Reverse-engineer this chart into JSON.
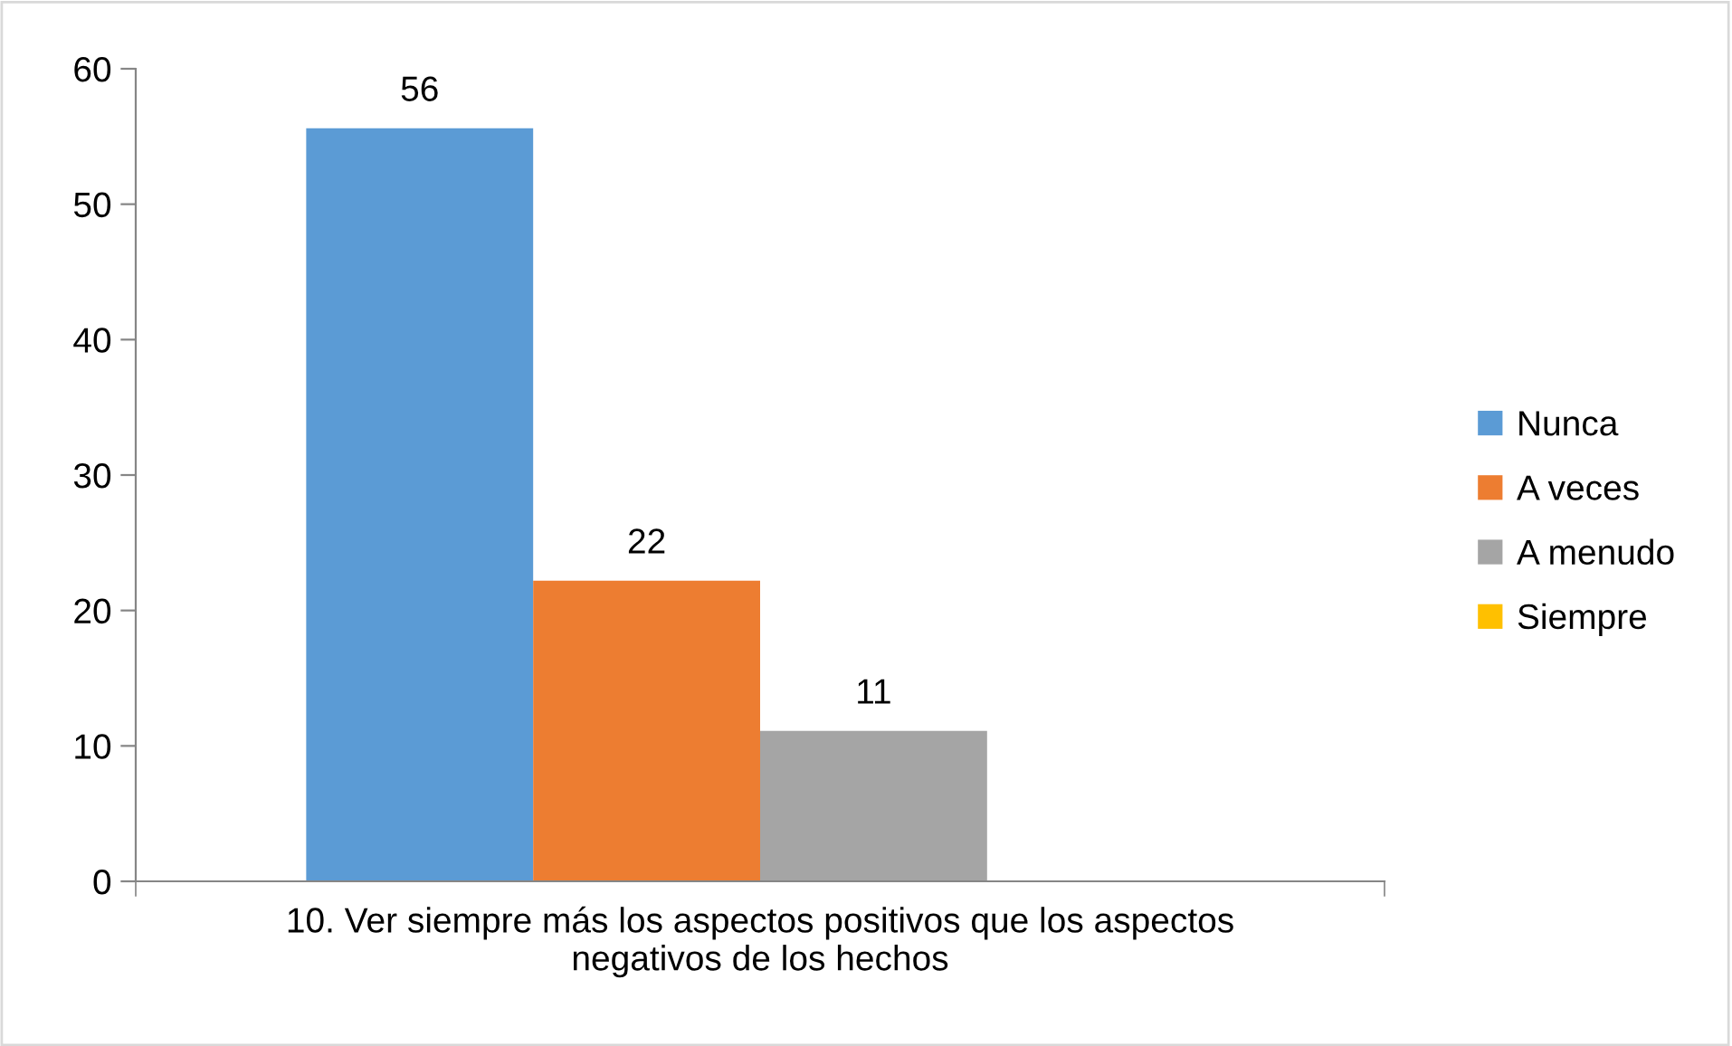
{
  "chart_data": {
    "type": "bar",
    "categories": [
      "10. Ver siempre más los aspectos positivos que los aspectos\nnegativos de los hechos"
    ],
    "series": [
      {
        "name": "Nunca",
        "color": "#5b9bd5",
        "values": [
          55.6
        ],
        "value_labels": [
          "56"
        ]
      },
      {
        "name": "A veces",
        "color": "#ed7d31",
        "values": [
          22.2
        ],
        "value_labels": [
          "22"
        ]
      },
      {
        "name": "A menudo",
        "color": "#a5a5a5",
        "values": [
          11.1
        ],
        "value_labels": [
          "11"
        ]
      },
      {
        "name": "Siempre",
        "color": "#ffc000",
        "values": [
          0
        ],
        "value_labels": [
          null
        ]
      }
    ],
    "ylim": [
      0,
      60
    ],
    "yticks": [
      0,
      10,
      20,
      30,
      40,
      50,
      60
    ],
    "grid": false,
    "legend": "right"
  }
}
